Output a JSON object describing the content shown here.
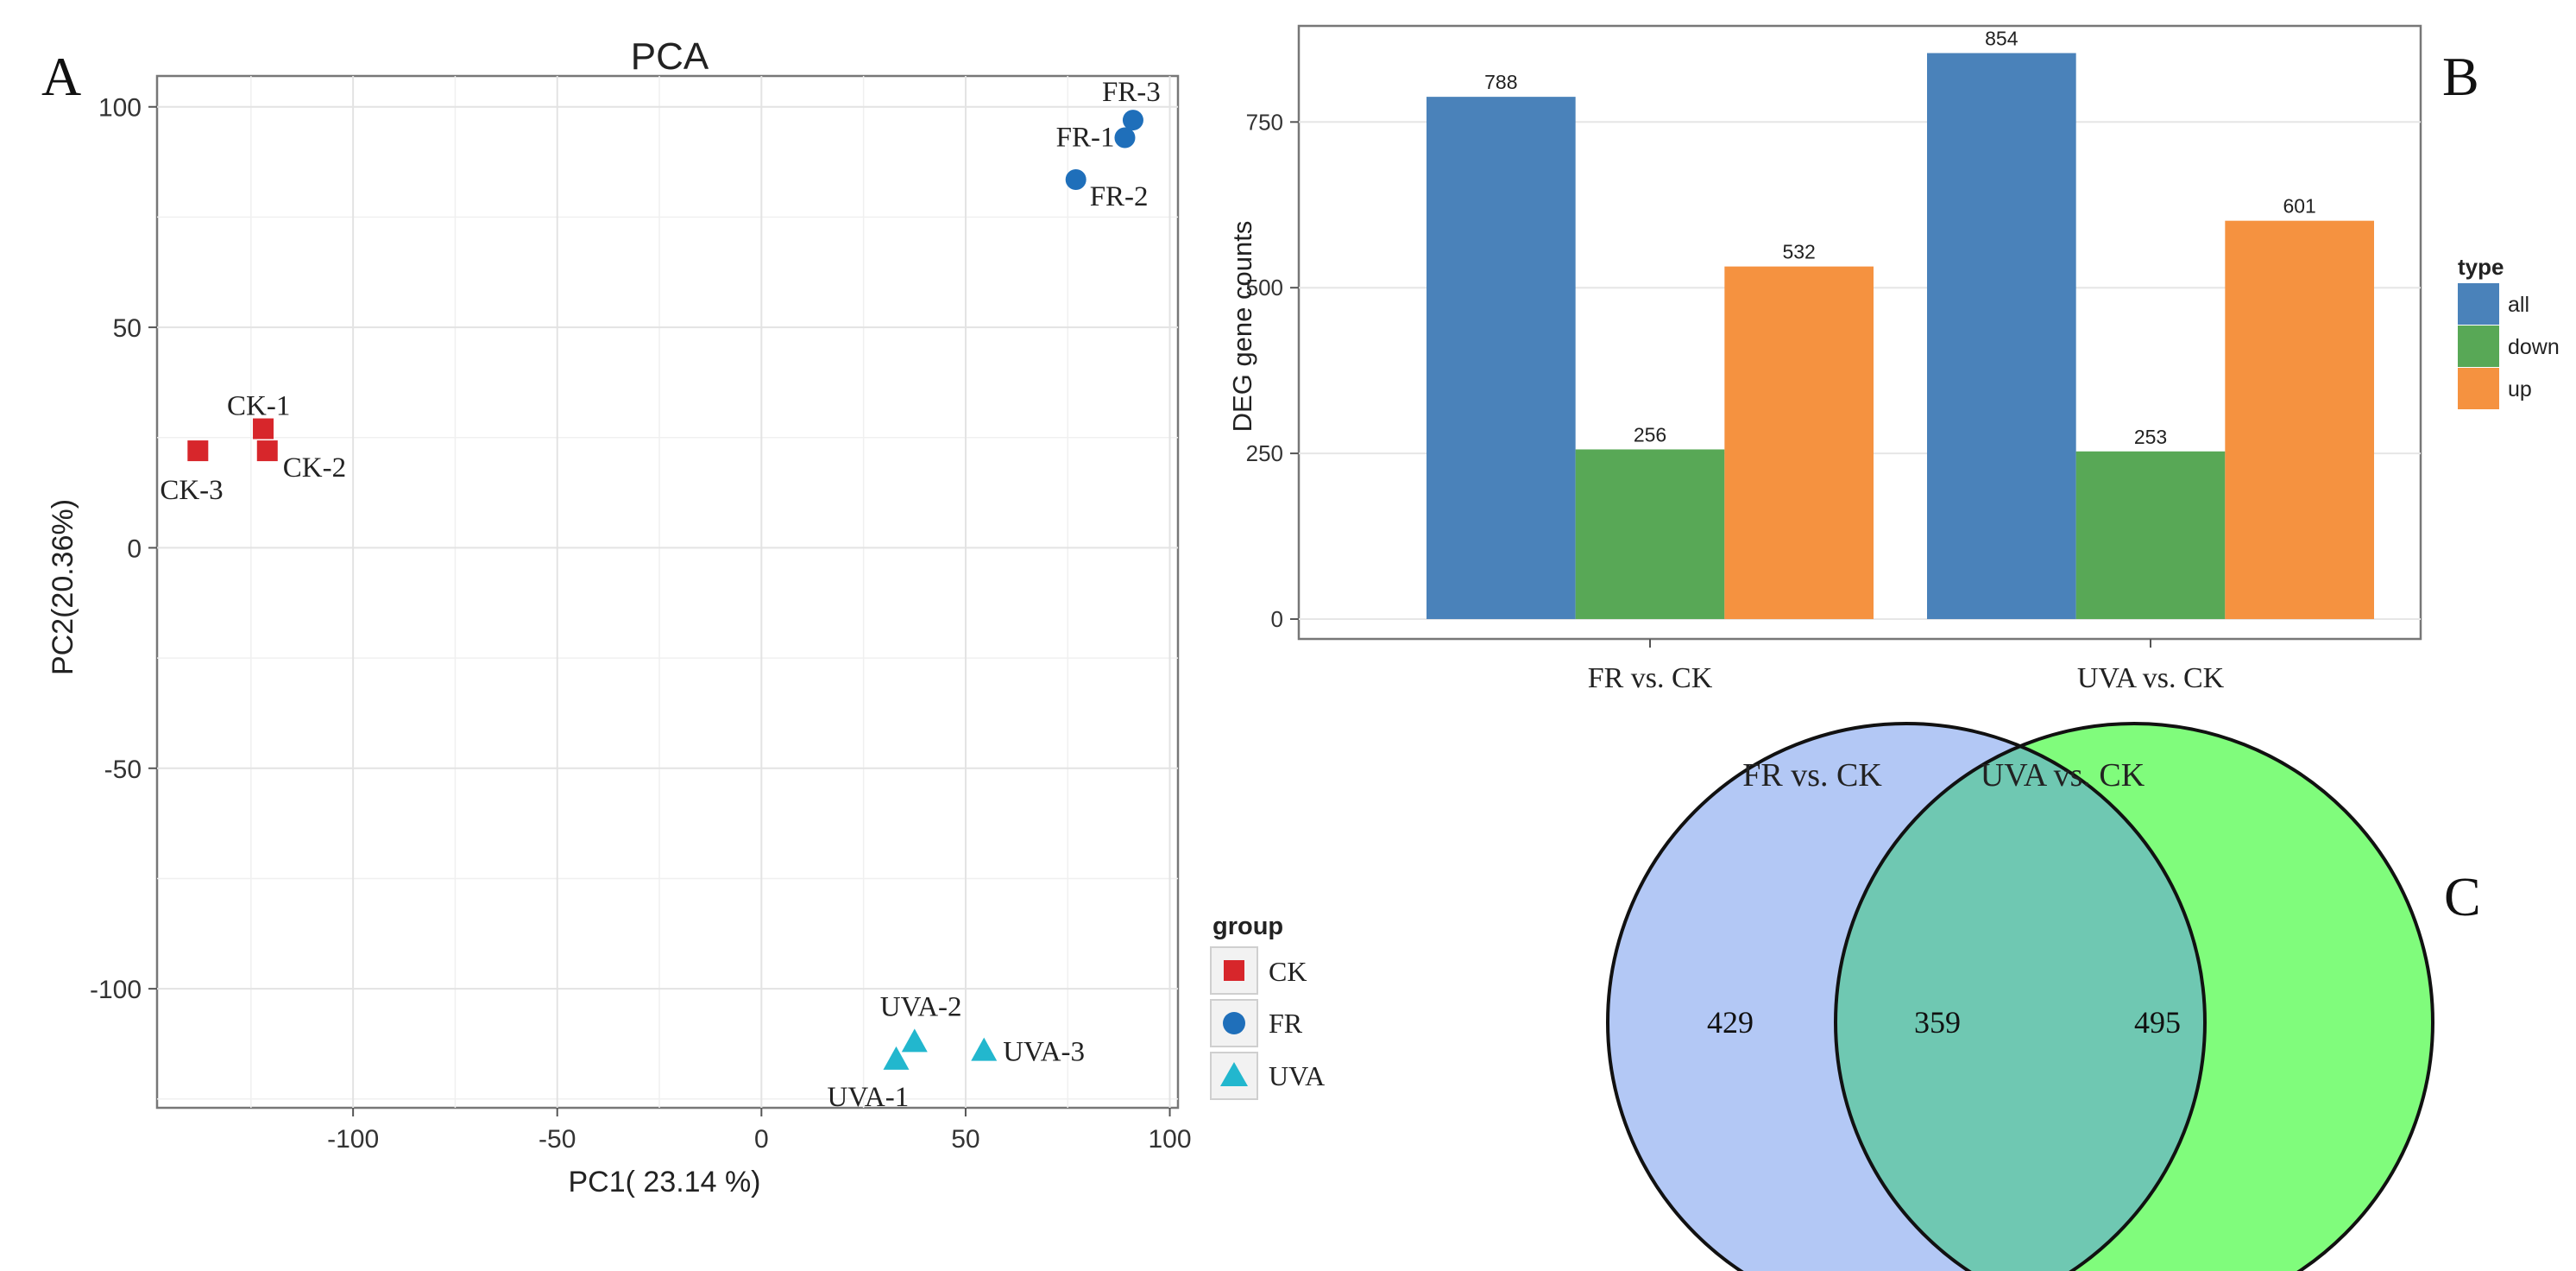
{
  "panel_labels": {
    "a": "A",
    "b": "B",
    "c": "C"
  },
  "colors": {
    "CK": "#d7262b",
    "FR": "#1f6fba",
    "UVA": "#22b7ce",
    "all": "#4a82ba",
    "down": "#58a856",
    "up": "#f59240",
    "venn_left": "#b3c8f5",
    "venn_right": "#80fc7c",
    "venn_overlap": "#6fc8b2"
  },
  "chart_data": [
    {
      "type": "scatter",
      "title": "PCA",
      "xlabel": "PC1( 23.14 %)",
      "ylabel": "PC2(20.36%)",
      "xlim": [
        -148,
        102
      ],
      "ylim": [
        -127,
        107
      ],
      "xticks": [
        -100,
        -50,
        0,
        50,
        100
      ],
      "yticks": [
        -100,
        -50,
        0,
        50,
        100
      ],
      "legend_title": "group",
      "legend_position": "right-bottom",
      "groups": [
        {
          "name": "CK",
          "shape": "square",
          "points": [
            {
              "label": "CK-1",
              "x": -122,
              "y": 27
            },
            {
              "label": "CK-2",
              "x": -121,
              "y": 22
            },
            {
              "label": "CK-3",
              "x": -138,
              "y": 22
            }
          ]
        },
        {
          "name": "FR",
          "shape": "circle",
          "points": [
            {
              "label": "FR-1",
              "x": 89,
              "y": 93
            },
            {
              "label": "FR-2",
              "x": 77,
              "y": 83.5
            },
            {
              "label": "FR-3",
              "x": 91,
              "y": 97
            }
          ]
        },
        {
          "name": "UVA",
          "shape": "triangle",
          "points": [
            {
              "label": "UVA-1",
              "x": 33,
              "y": -116
            },
            {
              "label": "UVA-2",
              "x": 37.5,
              "y": -112
            },
            {
              "label": "UVA-3",
              "x": 54.5,
              "y": -114
            }
          ]
        }
      ]
    },
    {
      "type": "bar",
      "categories": [
        "FR vs. CK",
        "UVA vs. CK"
      ],
      "series": [
        {
          "name": "all",
          "values": [
            788,
            854
          ]
        },
        {
          "name": "down",
          "values": [
            256,
            253
          ]
        },
        {
          "name": "up",
          "values": [
            532,
            601
          ]
        }
      ],
      "ylabel": "DEG gene counts",
      "xlabel": "",
      "ylim": [
        -30,
        895
      ],
      "yticks": [
        0,
        250,
        500,
        750
      ],
      "legend_title": "type",
      "legend_position": "right"
    },
    {
      "type": "venn",
      "sets": [
        {
          "name": "FR vs. CK",
          "only": 429
        },
        {
          "name": "UVA vs. CK",
          "only": 495
        }
      ],
      "intersection": 359
    }
  ]
}
